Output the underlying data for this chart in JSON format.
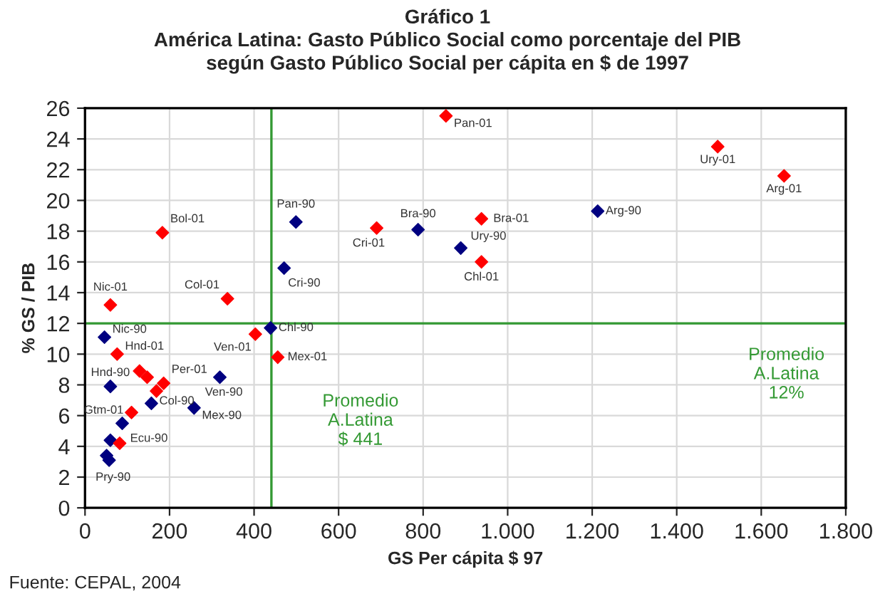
{
  "chart_data": {
    "type": "scatter",
    "title": "Gráfico 1\nAmérica Latina: Gasto Público Social como porcentaje del PIB\nsegún Gasto Público Social per cápita en $ de 1997",
    "xlabel": "GS Per cápita $ 97",
    "ylabel": "% GS / PIB",
    "series": [
      {
        "color": "#000080",
        "x": [
          499,
          471,
          439,
          788,
          889,
          1213,
          46,
          60,
          319,
          157,
          258,
          88,
          60,
          51,
          57
        ],
        "values": [
          18.6,
          15.6,
          11.7,
          18.1,
          16.9,
          19.3,
          11.1,
          7.9,
          8.5,
          6.8,
          6.5,
          5.5,
          4.4,
          3.4,
          3.1
        ]
      },
      {
        "color": "#ff0000",
        "x": [
          854,
          1497,
          1654,
          938,
          690,
          938,
          183,
          337,
          60,
          403,
          456,
          76,
          129,
          147,
          169,
          186,
          110,
          82
        ],
        "values": [
          25.5,
          23.5,
          21.6,
          18.8,
          18.2,
          16.0,
          17.9,
          13.6,
          13.2,
          11.3,
          9.8,
          10.0,
          8.9,
          8.5,
          7.6,
          8.1,
          6.2,
          4.2
        ]
      }
    ],
    "marker": "diamond",
    "grid": true,
    "legend": false,
    "xlim": [
      0,
      1800
    ],
    "ylim": [
      0,
      26
    ],
    "xticks": [
      0,
      200,
      400,
      600,
      800,
      {
        "value": 1000,
        "label": "1.000"
      },
      {
        "value": 1200,
        "label": "1.200"
      },
      {
        "value": 1400,
        "label": "1.400"
      },
      {
        "value": 1600,
        "label": "1.600"
      },
      {
        "value": 1800,
        "label": "1.800"
      }
    ],
    "yticks": [
      0,
      2,
      4,
      6,
      8,
      10,
      12,
      14,
      16,
      18,
      20,
      22,
      24,
      26
    ],
    "ref_lines": [
      {
        "axis": "x",
        "value": 441,
        "label": "Promedio\nA.Latina\n$ 441",
        "color": "#339933"
      },
      {
        "axis": "y",
        "value": 12,
        "label": "Promedio\nA.Latina\n12%",
        "color": "#339933"
      }
    ],
    "annotations": [
      {
        "text": "Pan-01",
        "x": 854,
        "y": 25.5
      },
      {
        "text": "Ury-01",
        "x": 1497,
        "y": 23.5
      },
      {
        "text": "Arg-01",
        "x": 1654,
        "y": 21.6
      },
      {
        "text": "Arg-90",
        "x": 1213,
        "y": 19.3
      },
      {
        "text": "Bra-01",
        "x": 938,
        "y": 18.8
      },
      {
        "text": "Bra-90",
        "x": 788,
        "y": 18.1
      },
      {
        "text": "Cri-01",
        "x": 690,
        "y": 18.2
      },
      {
        "text": "Ury-90",
        "x": 889,
        "y": 16.9
      },
      {
        "text": "Chl-01",
        "x": 938,
        "y": 16.0
      },
      {
        "text": "Pan-90",
        "x": 499,
        "y": 18.6
      },
      {
        "text": "Cri-90",
        "x": 471,
        "y": 15.6
      },
      {
        "text": "Bol-01",
        "x": 183,
        "y": 17.9
      },
      {
        "text": "Col-01",
        "x": 337,
        "y": 13.6
      },
      {
        "text": "Nic-01",
        "x": 60,
        "y": 13.2
      },
      {
        "text": "Chl-90",
        "x": 439,
        "y": 11.7
      },
      {
        "text": "Ven-01",
        "x": 403,
        "y": 11.3
      },
      {
        "text": "Mex-01",
        "x": 456,
        "y": 9.8
      },
      {
        "text": "Nic-90",
        "x": 46,
        "y": 11.1
      },
      {
        "text": "Hnd-01",
        "x": 76,
        "y": 10.0
      },
      {
        "text": "Hnd-90",
        "x": 60,
        "y": 7.9
      },
      {
        "text": "Per-01",
        "x": 186,
        "y": 8.1
      },
      {
        "text": "Ven-90",
        "x": 319,
        "y": 8.5
      },
      {
        "text": "Col-90",
        "x": 157,
        "y": 6.8
      },
      {
        "text": "Mex-90",
        "x": 258,
        "y": 6.5
      },
      {
        "text": "Gtm-01",
        "x": 110,
        "y": 6.2
      },
      {
        "text": "Ecu-90",
        "x": 88,
        "y": 5.5
      },
      {
        "text": "Pry-90",
        "x": 57,
        "y": 3.1
      },
      "Fuente: CEPAL, 2004"
    ]
  }
}
